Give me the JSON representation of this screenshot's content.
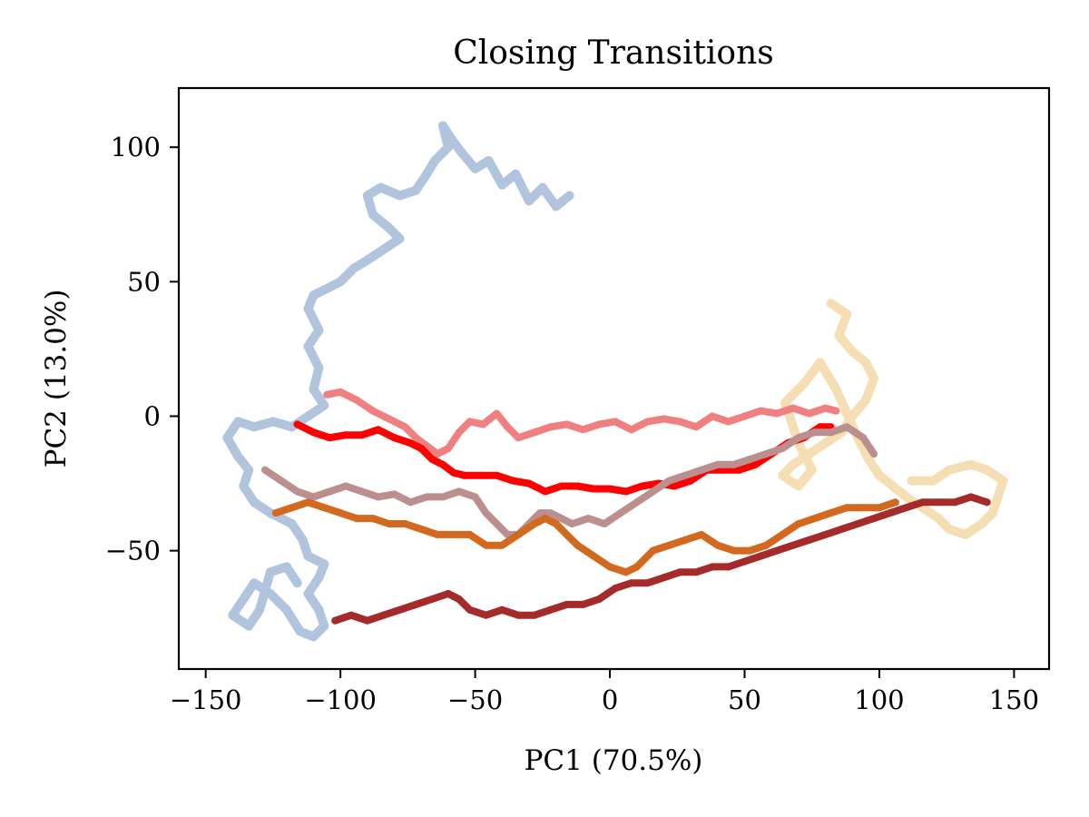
{
  "chart_data": {
    "type": "scatter",
    "title": "Closing Transitions",
    "xlabel": "PC1 (70.5%)",
    "ylabel": "PC2 (13.0%)",
    "xlim": [
      -160,
      163
    ],
    "ylim": [
      -94,
      122
    ],
    "xticks": [
      -150,
      -100,
      -50,
      0,
      50,
      100,
      150
    ],
    "xtick_labels": [
      "−150",
      "−100",
      "−50",
      "0",
      "50",
      "100",
      "150"
    ],
    "yticks": [
      -50,
      0,
      50,
      100
    ],
    "ytick_labels": [
      "−50",
      "0",
      "50",
      "100"
    ],
    "grid": false,
    "legend": "none",
    "series": [
      {
        "color": "#b0c4de",
        "point_size": 10,
        "points": [
          [
            -15,
            82
          ],
          [
            -20,
            78
          ],
          [
            -25,
            85
          ],
          [
            -30,
            80
          ],
          [
            -35,
            90
          ],
          [
            -40,
            86
          ],
          [
            -45,
            95
          ],
          [
            -50,
            92
          ],
          [
            -55,
            98
          ],
          [
            -58,
            102
          ],
          [
            -62,
            108
          ],
          [
            -60,
            100
          ],
          [
            -65,
            95
          ],
          [
            -68,
            90
          ],
          [
            -72,
            84
          ],
          [
            -78,
            82
          ],
          [
            -85,
            85
          ],
          [
            -90,
            82
          ],
          [
            -88,
            75
          ],
          [
            -82,
            70
          ],
          [
            -78,
            66
          ],
          [
            -84,
            62
          ],
          [
            -90,
            58
          ],
          [
            -95,
            55
          ],
          [
            -100,
            50
          ],
          [
            -104,
            48
          ],
          [
            -110,
            45
          ],
          [
            -112,
            40
          ],
          [
            -108,
            32
          ],
          [
            -112,
            26
          ],
          [
            -108,
            18
          ],
          [
            -110,
            10
          ],
          [
            -106,
            4
          ],
          [
            -112,
            0
          ],
          [
            -118,
            -4
          ],
          [
            -125,
            -2
          ],
          [
            -132,
            -4
          ],
          [
            -138,
            -2
          ],
          [
            -142,
            -8
          ],
          [
            -138,
            -15
          ],
          [
            -134,
            -20
          ],
          [
            -136,
            -26
          ],
          [
            -132,
            -32
          ],
          [
            -126,
            -36
          ],
          [
            -118,
            -40
          ],
          [
            -114,
            -46
          ],
          [
            -112,
            -52
          ],
          [
            -106,
            -55
          ],
          [
            -108,
            -60
          ],
          [
            -112,
            -66
          ],
          [
            -108,
            -72
          ],
          [
            -106,
            -78
          ],
          [
            -110,
            -82
          ],
          [
            -115,
            -80
          ],
          [
            -120,
            -72
          ],
          [
            -126,
            -66
          ],
          [
            -132,
            -62
          ],
          [
            -136,
            -68
          ],
          [
            -140,
            -74
          ],
          [
            -134,
            -78
          ],
          [
            -130,
            -72
          ],
          [
            -126,
            -58
          ],
          [
            -120,
            -56
          ],
          [
            -116,
            -62
          ]
        ]
      },
      {
        "color": "#f5deb3",
        "point_size": 10,
        "points": [
          [
            82,
            42
          ],
          [
            88,
            38
          ],
          [
            85,
            30
          ],
          [
            90,
            24
          ],
          [
            95,
            20
          ],
          [
            98,
            14
          ],
          [
            95,
            6
          ],
          [
            90,
            0
          ],
          [
            86,
            -6
          ],
          [
            80,
            -10
          ],
          [
            74,
            -14
          ],
          [
            68,
            -18
          ],
          [
            64,
            -22
          ],
          [
            70,
            -26
          ],
          [
            75,
            -20
          ],
          [
            70,
            -10
          ],
          [
            65,
            5
          ],
          [
            72,
            12
          ],
          [
            78,
            20
          ],
          [
            84,
            10
          ],
          [
            92,
            -8
          ],
          [
            96,
            -16
          ],
          [
            100,
            -22
          ],
          [
            105,
            -26
          ],
          [
            110,
            -30
          ],
          [
            116,
            -34
          ],
          [
            122,
            -38
          ],
          [
            126,
            -42
          ],
          [
            132,
            -44
          ],
          [
            138,
            -40
          ],
          [
            142,
            -36
          ],
          [
            144,
            -30
          ],
          [
            146,
            -24
          ],
          [
            140,
            -20
          ],
          [
            134,
            -18
          ],
          [
            126,
            -20
          ],
          [
            120,
            -24
          ],
          [
            112,
            -24
          ]
        ]
      },
      {
        "color": "#f08080",
        "point_size": 8,
        "points": [
          [
            -105,
            8
          ],
          [
            -100,
            9
          ],
          [
            -94,
            6
          ],
          [
            -88,
            2
          ],
          [
            -82,
            -1
          ],
          [
            -76,
            -4
          ],
          [
            -72,
            -8
          ],
          [
            -68,
            -11
          ],
          [
            -64,
            -14
          ],
          [
            -60,
            -12
          ],
          [
            -56,
            -6
          ],
          [
            -52,
            -2
          ],
          [
            -47,
            -3
          ],
          [
            -42,
            1
          ],
          [
            -38,
            -4
          ],
          [
            -34,
            -8
          ],
          [
            -28,
            -6
          ],
          [
            -22,
            -4
          ],
          [
            -16,
            -3
          ],
          [
            -10,
            -5
          ],
          [
            -4,
            -3
          ],
          [
            2,
            -2
          ],
          [
            8,
            -5
          ],
          [
            14,
            -2
          ],
          [
            20,
            -1
          ],
          [
            26,
            -2
          ],
          [
            32,
            -4
          ],
          [
            38,
            0
          ],
          [
            44,
            -2
          ],
          [
            50,
            0
          ],
          [
            56,
            2
          ],
          [
            62,
            1
          ],
          [
            68,
            3
          ],
          [
            74,
            1
          ],
          [
            80,
            3
          ],
          [
            84,
            2
          ]
        ]
      },
      {
        "color": "#ff0000",
        "point_size": 8,
        "points": [
          [
            -116,
            -3
          ],
          [
            -110,
            -6
          ],
          [
            -104,
            -8
          ],
          [
            -98,
            -7
          ],
          [
            -92,
            -7
          ],
          [
            -86,
            -5
          ],
          [
            -80,
            -8
          ],
          [
            -74,
            -10
          ],
          [
            -70,
            -12
          ],
          [
            -66,
            -16
          ],
          [
            -62,
            -18
          ],
          [
            -58,
            -21
          ],
          [
            -54,
            -22
          ],
          [
            -48,
            -22
          ],
          [
            -42,
            -22
          ],
          [
            -36,
            -24
          ],
          [
            -30,
            -25
          ],
          [
            -24,
            -28
          ],
          [
            -18,
            -26
          ],
          [
            -12,
            -26
          ],
          [
            -6,
            -27
          ],
          [
            0,
            -27
          ],
          [
            6,
            -28
          ],
          [
            12,
            -26
          ],
          [
            18,
            -25
          ],
          [
            24,
            -26
          ],
          [
            30,
            -24
          ],
          [
            36,
            -20
          ],
          [
            42,
            -20
          ],
          [
            48,
            -20
          ],
          [
            54,
            -18
          ],
          [
            60,
            -14
          ],
          [
            66,
            -10
          ],
          [
            72,
            -8
          ],
          [
            78,
            -4
          ],
          [
            82,
            -4
          ]
        ]
      },
      {
        "color": "#bc8f8f",
        "point_size": 8,
        "points": [
          [
            -128,
            -20
          ],
          [
            -122,
            -24
          ],
          [
            -116,
            -28
          ],
          [
            -110,
            -30
          ],
          [
            -104,
            -28
          ],
          [
            -98,
            -26
          ],
          [
            -92,
            -28
          ],
          [
            -86,
            -30
          ],
          [
            -80,
            -29
          ],
          [
            -74,
            -32
          ],
          [
            -68,
            -30
          ],
          [
            -62,
            -30
          ],
          [
            -56,
            -28
          ],
          [
            -50,
            -30
          ],
          [
            -46,
            -36
          ],
          [
            -42,
            -40
          ],
          [
            -38,
            -44
          ],
          [
            -34,
            -44
          ],
          [
            -30,
            -40
          ],
          [
            -26,
            -36
          ],
          [
            -22,
            -36
          ],
          [
            -18,
            -38
          ],
          [
            -14,
            -40
          ],
          [
            -8,
            -38
          ],
          [
            -2,
            -40
          ],
          [
            4,
            -36
          ],
          [
            10,
            -32
          ],
          [
            16,
            -28
          ],
          [
            22,
            -24
          ],
          [
            28,
            -22
          ],
          [
            34,
            -20
          ],
          [
            40,
            -18
          ],
          [
            46,
            -18
          ],
          [
            52,
            -16
          ],
          [
            58,
            -14
          ],
          [
            64,
            -12
          ],
          [
            70,
            -8
          ],
          [
            76,
            -6
          ],
          [
            82,
            -6
          ],
          [
            88,
            -4
          ],
          [
            94,
            -8
          ],
          [
            98,
            -14
          ]
        ]
      },
      {
        "color": "#d2691e",
        "point_size": 8,
        "points": [
          [
            -124,
            -36
          ],
          [
            -118,
            -34
          ],
          [
            -112,
            -32
          ],
          [
            -106,
            -34
          ],
          [
            -100,
            -36
          ],
          [
            -94,
            -38
          ],
          [
            -88,
            -38
          ],
          [
            -82,
            -40
          ],
          [
            -76,
            -40
          ],
          [
            -70,
            -42
          ],
          [
            -64,
            -44
          ],
          [
            -58,
            -44
          ],
          [
            -52,
            -44
          ],
          [
            -46,
            -48
          ],
          [
            -40,
            -48
          ],
          [
            -34,
            -44
          ],
          [
            -28,
            -40
          ],
          [
            -24,
            -38
          ],
          [
            -20,
            -40
          ],
          [
            -16,
            -44
          ],
          [
            -12,
            -48
          ],
          [
            -6,
            -52
          ],
          [
            0,
            -56
          ],
          [
            6,
            -58
          ],
          [
            10,
            -56
          ],
          [
            16,
            -50
          ],
          [
            22,
            -48
          ],
          [
            28,
            -46
          ],
          [
            34,
            -44
          ],
          [
            40,
            -48
          ],
          [
            46,
            -50
          ],
          [
            52,
            -50
          ],
          [
            58,
            -48
          ],
          [
            64,
            -44
          ],
          [
            70,
            -40
          ],
          [
            76,
            -38
          ],
          [
            82,
            -36
          ],
          [
            88,
            -34
          ],
          [
            94,
            -34
          ],
          [
            100,
            -34
          ],
          [
            106,
            -32
          ]
        ]
      },
      {
        "color": "#a52a2a",
        "point_size": 8,
        "points": [
          [
            -102,
            -76
          ],
          [
            -96,
            -74
          ],
          [
            -90,
            -76
          ],
          [
            -84,
            -74
          ],
          [
            -78,
            -72
          ],
          [
            -72,
            -70
          ],
          [
            -66,
            -68
          ],
          [
            -60,
            -66
          ],
          [
            -56,
            -68
          ],
          [
            -52,
            -72
          ],
          [
            -46,
            -74
          ],
          [
            -40,
            -72
          ],
          [
            -34,
            -74
          ],
          [
            -28,
            -74
          ],
          [
            -22,
            -72
          ],
          [
            -16,
            -70
          ],
          [
            -10,
            -70
          ],
          [
            -4,
            -68
          ],
          [
            2,
            -64
          ],
          [
            8,
            -62
          ],
          [
            14,
            -62
          ],
          [
            20,
            -60
          ],
          [
            26,
            -58
          ],
          [
            32,
            -58
          ],
          [
            38,
            -56
          ],
          [
            44,
            -56
          ],
          [
            50,
            -54
          ],
          [
            56,
            -52
          ],
          [
            62,
            -50
          ],
          [
            68,
            -48
          ],
          [
            74,
            -46
          ],
          [
            80,
            -44
          ],
          [
            86,
            -42
          ],
          [
            92,
            -40
          ],
          [
            98,
            -38
          ],
          [
            104,
            -36
          ],
          [
            110,
            -34
          ],
          [
            116,
            -32
          ],
          [
            122,
            -32
          ],
          [
            128,
            -32
          ],
          [
            134,
            -30
          ],
          [
            140,
            -32
          ]
        ]
      }
    ]
  }
}
